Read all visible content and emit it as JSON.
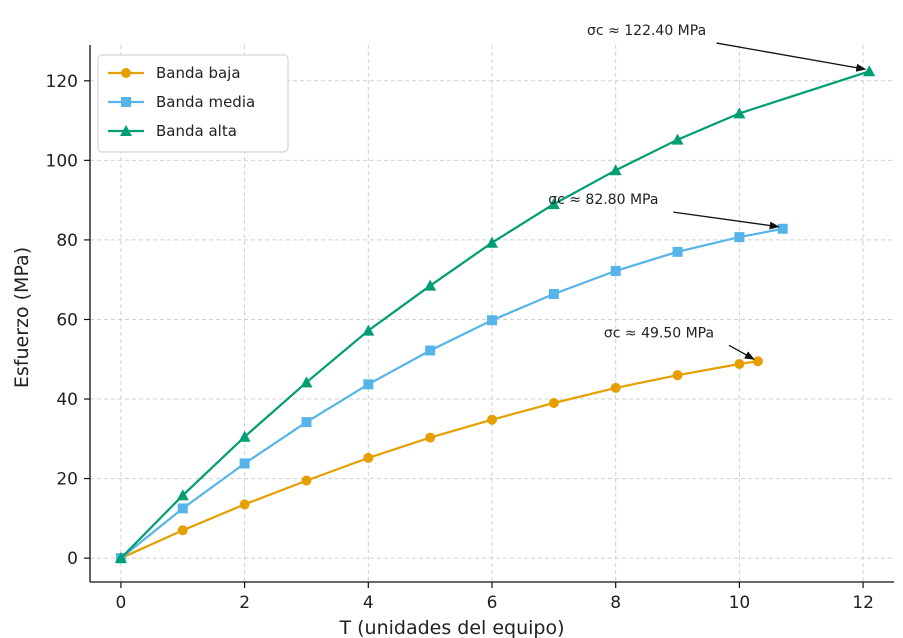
{
  "chart_data": {
    "type": "line",
    "xlabel": "T (unidades del equipo)",
    "ylabel": "Esfuerzo (MPa)",
    "xlim": [
      -0.5,
      12.5
    ],
    "ylim": [
      -6,
      129
    ],
    "xticks": [
      0,
      2,
      4,
      6,
      8,
      10,
      12
    ],
    "yticks": [
      0,
      20,
      40,
      60,
      80,
      100,
      120
    ],
    "grid": true,
    "legend_position": "top-left",
    "series": [
      {
        "name": "Banda baja",
        "color": "#E69F00",
        "marker": "circle",
        "x": [
          0,
          1,
          2,
          3,
          4,
          5,
          6,
          7,
          8,
          9,
          10,
          10.3
        ],
        "y": [
          0,
          7,
          13.5,
          19.5,
          25.2,
          30.3,
          34.8,
          39,
          42.8,
          46,
          48.8,
          49.5
        ]
      },
      {
        "name": "Banda media",
        "color": "#56B4E9",
        "marker": "square",
        "x": [
          0,
          1,
          2,
          3,
          4,
          5,
          6,
          7,
          8,
          9,
          10,
          10.7
        ],
        "y": [
          0,
          12.5,
          23.8,
          34.2,
          43.7,
          52.2,
          59.8,
          66.4,
          72.2,
          77,
          80.7,
          82.8
        ]
      },
      {
        "name": "Banda alta",
        "color": "#009E73",
        "marker": "triangle",
        "x": [
          0,
          1,
          2,
          3,
          4,
          5,
          6,
          7,
          8,
          9,
          10,
          12.1
        ],
        "y": [
          0,
          15.8,
          30.5,
          44.2,
          57.2,
          68.5,
          79.3,
          89,
          97.5,
          105.2,
          111.8,
          122.4
        ]
      }
    ],
    "annotations": [
      {
        "text": "σc ≈ 122.40 MPa",
        "target": [
          12.1,
          122.4
        ],
        "text_at": [
          8.5,
          131.5
        ]
      },
      {
        "text": "σc ≈ 82.80 MPa",
        "target": [
          10.7,
          82.8
        ],
        "text_at": [
          7.8,
          89
        ]
      },
      {
        "text": "σc ≈ 49.50 MPa",
        "target": [
          10.3,
          49.5
        ],
        "text_at": [
          8.7,
          55.5
        ]
      }
    ]
  }
}
